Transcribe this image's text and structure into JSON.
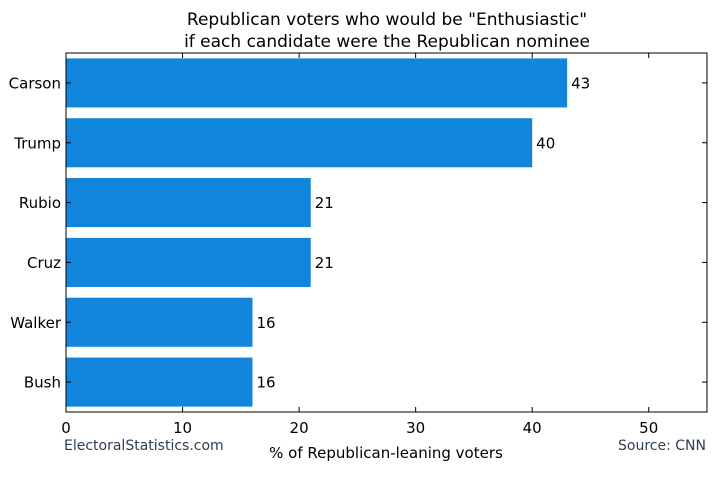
{
  "chart_data": {
    "type": "bar",
    "orientation": "horizontal",
    "title": "Republican voters who would be \"Enthusiastic\"",
    "subtitle": "if each candidate were the Republican nominee",
    "xlabel": "% of Republican-leaning voters",
    "ylabel": "",
    "categories": [
      "Carson",
      "Trump",
      "Rubio",
      "Cruz",
      "Walker",
      "Bush"
    ],
    "values": [
      43,
      40,
      21,
      21,
      16,
      16
    ],
    "data_labels": [
      "43",
      "40",
      "21",
      "21",
      "16",
      "16"
    ],
    "xlim": [
      0,
      55
    ],
    "xticks": [
      0,
      10,
      20,
      30,
      40,
      50
    ],
    "xtick_labels": [
      "0",
      "10",
      "20",
      "30",
      "40",
      "50"
    ],
    "grid": false,
    "legend": "none",
    "bar_color": "#1185db"
  },
  "footer": {
    "left": "ElectoralStatistics.com",
    "right": "Source: CNN"
  }
}
